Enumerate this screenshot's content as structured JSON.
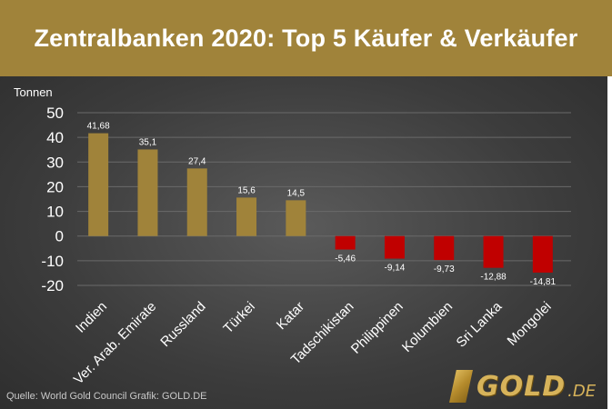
{
  "header": {
    "title": "Zentralbanken 2020: Top 5 Käufer & Verkäufer"
  },
  "footer": {
    "source": "Quelle: World Gold Council    Grafik: GOLD.DE"
  },
  "logo": {
    "text": "GOLD",
    "tld": ".DE"
  },
  "colors": {
    "positive": "#a0833a",
    "negative": "#c00000",
    "grid": "#6a6a6a",
    "text": "#ffffff"
  },
  "chart_data": {
    "type": "bar",
    "title": "Zentralbanken 2020: Top 5 Käufer & Verkäufer",
    "ylabel": "Tonnen",
    "xlabel": "",
    "ylim": [
      -20,
      50
    ],
    "yticks": [
      50,
      40,
      30,
      20,
      10,
      0,
      -10,
      -20
    ],
    "grid": true,
    "categories": [
      "Indien",
      "Ver. Arab. Emirate",
      "Russland",
      "Türkei",
      "Katar",
      "Tadschikistan",
      "Philippinen",
      "Kolumbien",
      "Sri Lanka",
      "Mongolei"
    ],
    "values": [
      41.68,
      35.1,
      27.4,
      15.6,
      14.5,
      -5.46,
      -9.14,
      -9.73,
      -12.88,
      -14.81
    ],
    "data_labels": [
      "41,68",
      "35,1",
      "27,4",
      "15,6",
      "14,5",
      "-5,46",
      "-9,14",
      "-9,73",
      "-12,88",
      "-14,81"
    ]
  }
}
